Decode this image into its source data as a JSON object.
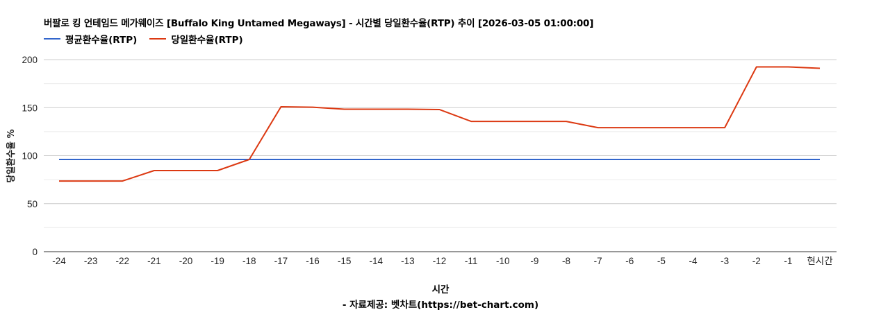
{
  "header": {
    "title": "버팔로 킹 언테임드 메가웨이즈 [Buffalo King Untamed Megaways] - 시간별 당일환수율(RTP) 추이 [2026-03-05 01:00:00]"
  },
  "legend": [
    {
      "label": "평균환수율(RTP)",
      "color": "#3366cc"
    },
    {
      "label": "당일환수율(RTP)",
      "color": "#dc3912"
    }
  ],
  "axes": {
    "ylabel": "당일환수율 %",
    "xlabel": "시간",
    "yticks": [
      "0",
      "50",
      "100",
      "150",
      "200"
    ]
  },
  "footer": {
    "credit": "- 자료제공: 벳차트(https://bet-chart.com)"
  },
  "chart_data": {
    "type": "line",
    "title": "버팔로 킹 언테임드 메가웨이즈 [Buffalo King Untamed Megaways] - 시간별 당일환수율(RTP) 추이 [2026-03-05 01:00:00]",
    "xlabel": "시간",
    "ylabel": "당일환수율 %",
    "ylim": [
      0,
      200
    ],
    "yticks": [
      0,
      50,
      100,
      150,
      200
    ],
    "grid": true,
    "legend_position": "top",
    "categories": [
      "-24",
      "-23",
      "-22",
      "-21",
      "-20",
      "-19",
      "-18",
      "-17",
      "-16",
      "-15",
      "-14",
      "-13",
      "-12",
      "-11",
      "-10",
      "-9",
      "-8",
      "-7",
      "-6",
      "-5",
      "-4",
      "-3",
      "-2",
      "-1",
      "현시간"
    ],
    "series": [
      {
        "name": "평균환수율(RTP)",
        "color": "#3366cc",
        "values": [
          96,
          96,
          96,
          96,
          96,
          96,
          96,
          96,
          96,
          96,
          96,
          96,
          96,
          96,
          96,
          96,
          96,
          96,
          96,
          96,
          96,
          96,
          96,
          96,
          96
        ]
      },
      {
        "name": "당일환수율(RTP)",
        "color": "#dc3912",
        "values": [
          73.6,
          73.6,
          73.6,
          84.5,
          84.5,
          84.5,
          96,
          150.9,
          150.5,
          148.4,
          148.4,
          148.4,
          148,
          135.7,
          135.7,
          135.7,
          135.7,
          129.2,
          129.2,
          129.2,
          129.2,
          129.2,
          192.4,
          192.4,
          191
        ]
      }
    ]
  }
}
